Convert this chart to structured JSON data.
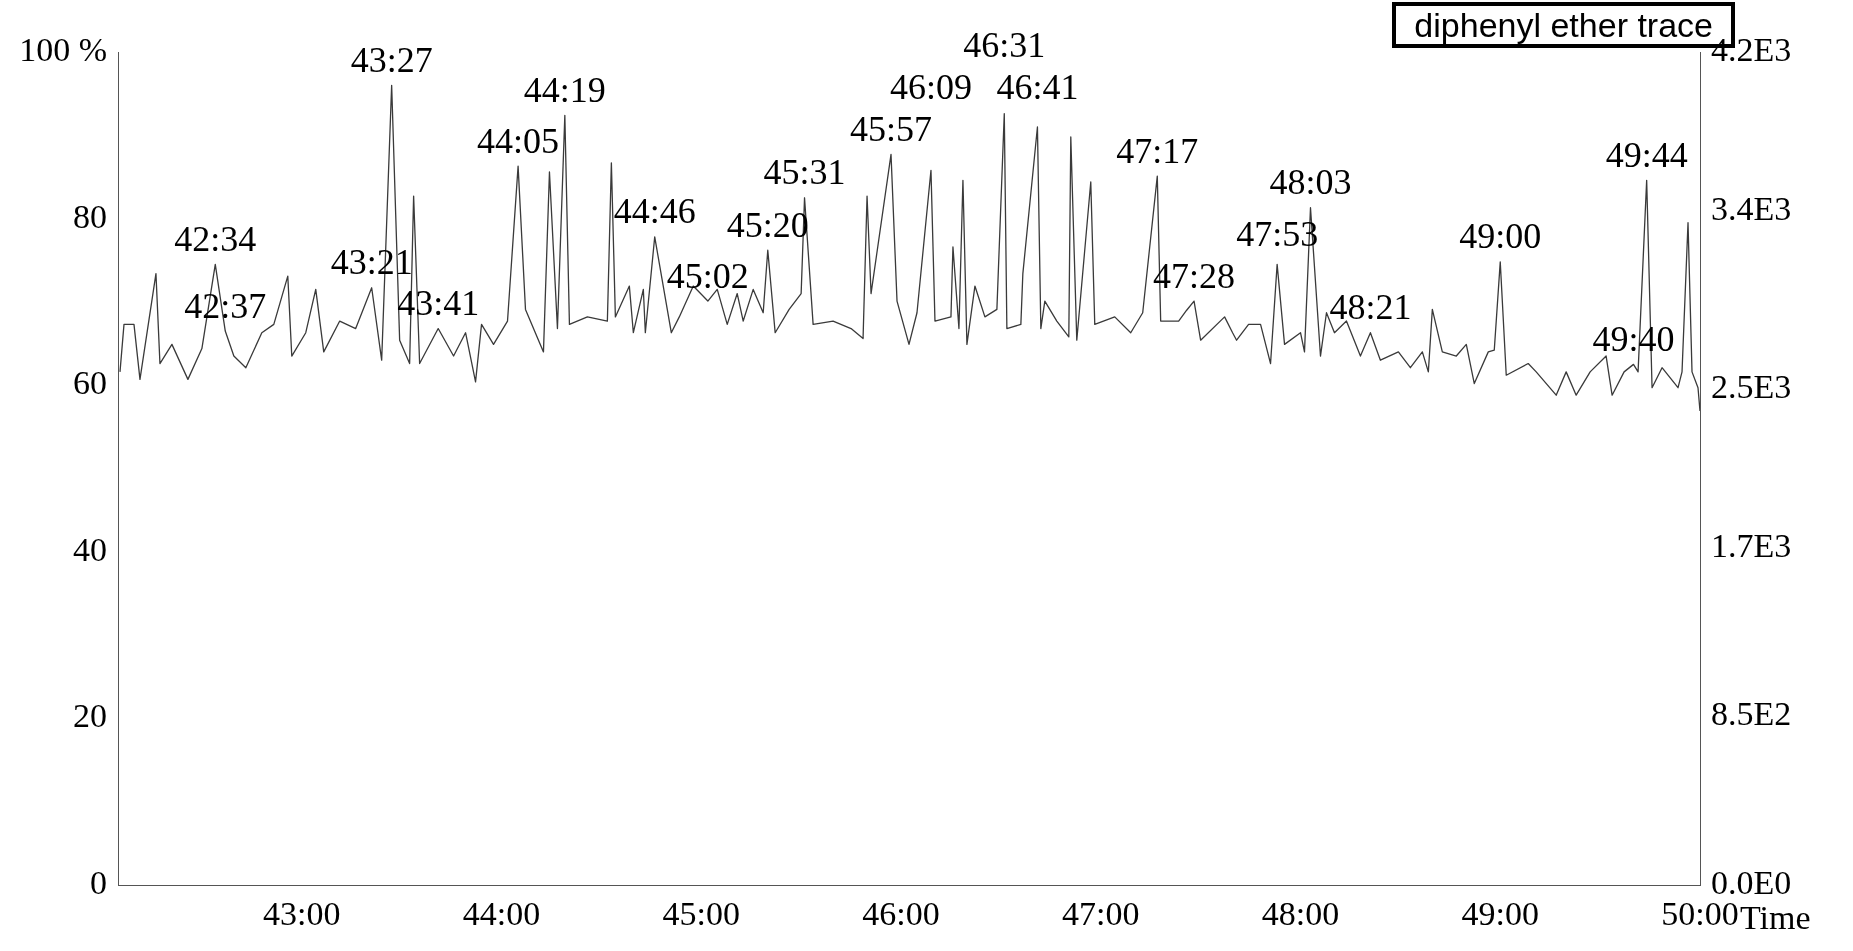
{
  "chart_data": {
    "type": "line",
    "title": "diphenyl ether trace",
    "xlabel": "Time",
    "xlim": [
      42.08,
      50.0
    ],
    "xticks": [
      {
        "value": 43,
        "label": "43:00"
      },
      {
        "value": 44,
        "label": "44:00"
      },
      {
        "value": 45,
        "label": "45:00"
      },
      {
        "value": 46,
        "label": "46:00"
      },
      {
        "value": 47,
        "label": "47:00"
      },
      {
        "value": 48,
        "label": "48:00"
      },
      {
        "value": 49,
        "label": "49:00"
      },
      {
        "value": 50,
        "label": "50:00"
      }
    ],
    "ylim": [
      0,
      100
    ],
    "yticks": [
      0,
      20,
      40,
      60,
      80,
      {
        "value": 100,
        "label": "100 %"
      }
    ],
    "y2lim": [
      0,
      4200
    ],
    "y2ticks": [
      {
        "value": 0,
        "label": "0.0E0"
      },
      {
        "value": 850,
        "label": "8.5E2"
      },
      {
        "value": 1700,
        "label": "1.7E3"
      },
      {
        "value": 2500,
        "label": "2.5E3"
      },
      {
        "value": 3400,
        "label": "3.4E3"
      },
      {
        "value": 4200,
        "label": "4.2E3"
      }
    ],
    "grid": false,
    "legend": false,
    "marker": "none",
    "line_style": "solid",
    "series": [
      {
        "color": "#3a3a3a",
        "x": [
          42.09,
          42.11,
          42.16,
          42.19,
          42.27,
          42.29,
          42.35,
          42.43,
          42.5,
          42.567,
          42.617,
          42.66,
          42.72,
          42.8,
          42.86,
          42.93,
          42.95,
          43.02,
          43.07,
          43.11,
          43.19,
          43.27,
          43.35,
          43.4,
          43.45,
          43.49,
          43.54,
          43.56,
          43.59,
          43.683,
          43.76,
          43.82,
          43.87,
          43.9,
          43.96,
          44.03,
          44.083,
          44.12,
          44.21,
          44.24,
          44.28,
          44.317,
          44.34,
          44.43,
          44.53,
          44.55,
          44.57,
          44.64,
          44.66,
          44.71,
          44.72,
          44.767,
          44.85,
          44.89,
          44.96,
          45.033,
          45.08,
          45.13,
          45.18,
          45.21,
          45.26,
          45.31,
          45.333,
          45.37,
          45.44,
          45.5,
          45.517,
          45.56,
          45.66,
          45.75,
          45.81,
          45.83,
          45.85,
          45.95,
          45.98,
          46.04,
          46.08,
          46.15,
          46.17,
          46.25,
          46.26,
          46.29,
          46.31,
          46.33,
          46.37,
          46.42,
          46.48,
          46.517,
          46.53,
          46.6,
          46.61,
          46.683,
          46.7,
          46.72,
          46.78,
          46.84,
          46.85,
          46.88,
          46.95,
          46.97,
          47.07,
          47.15,
          47.21,
          47.283,
          47.3,
          47.39,
          47.43,
          47.467,
          47.5,
          47.62,
          47.66,
          47.68,
          47.74,
          47.8,
          47.85,
          47.883,
          47.92,
          48.0,
          48.02,
          48.05,
          48.1,
          48.13,
          48.17,
          48.23,
          48.3,
          48.35,
          48.4,
          48.49,
          48.55,
          48.61,
          48.64,
          48.66,
          48.71,
          48.78,
          48.83,
          48.87,
          48.94,
          48.97,
          49.0,
          49.03,
          49.14,
          49.18,
          49.28,
          49.33,
          49.38,
          49.45,
          49.53,
          49.56,
          49.62,
          49.667,
          49.69,
          49.733,
          49.76,
          49.81,
          49.89,
          49.91,
          49.94,
          49.96,
          49.99,
          50.0
        ],
        "values": [
          61.6,
          67.3,
          67.3,
          60.7,
          73.4,
          62.6,
          64.9,
          60.7,
          64.4,
          74.5,
          66.5,
          63.5,
          62.1,
          66.3,
          67.3,
          73.1,
          63.5,
          66.3,
          71.5,
          64.0,
          67.7,
          66.8,
          71.7,
          63.0,
          96.0,
          65.4,
          62.6,
          82.7,
          62.6,
          66.8,
          63.5,
          66.3,
          60.4,
          67.3,
          64.9,
          67.7,
          86.3,
          69.1,
          64.0,
          85.6,
          66.8,
          92.4,
          67.3,
          68.2,
          67.7,
          86.7,
          68.2,
          71.9,
          66.3,
          71.5,
          66.3,
          77.8,
          66.3,
          68.2,
          71.9,
          70.1,
          71.5,
          67.3,
          71.0,
          67.7,
          71.5,
          68.7,
          76.2,
          66.3,
          69.1,
          71.0,
          82.5,
          67.3,
          67.7,
          66.8,
          65.6,
          82.7,
          71.0,
          87.7,
          70.1,
          64.9,
          68.7,
          85.8,
          67.7,
          68.2,
          76.6,
          66.8,
          84.6,
          64.9,
          71.9,
          68.2,
          69.1,
          92.6,
          66.8,
          67.3,
          73.4,
          91.0,
          66.8,
          70.1,
          67.7,
          65.8,
          89.8,
          65.4,
          84.4,
          67.3,
          68.2,
          66.3,
          68.7,
          85.1,
          67.7,
          67.7,
          69.0,
          70.1,
          65.4,
          68.2,
          66.3,
          65.4,
          67.3,
          67.3,
          62.6,
          74.5,
          64.9,
          66.3,
          64.0,
          81.3,
          63.5,
          68.7,
          66.3,
          67.7,
          63.5,
          66.3,
          63.0,
          64.0,
          62.1,
          64.0,
          61.6,
          69.1,
          64.0,
          63.5,
          64.9,
          60.2,
          64.0,
          64.2,
          74.8,
          61.2,
          62.6,
          61.6,
          58.8,
          61.6,
          58.8,
          61.6,
          63.5,
          58.8,
          61.6,
          62.5,
          61.6,
          84.6,
          59.7,
          62.1,
          59.7,
          61.6,
          79.5,
          61.6,
          59.7,
          56.9
        ]
      }
    ],
    "annotations": [
      {
        "text": "42:34",
        "x": 42.567,
        "y": 74.5
      },
      {
        "text": "42:37",
        "x": 42.617,
        "y": 66.5
      },
      {
        "text": "43:21",
        "x": 43.35,
        "y": 71.7
      },
      {
        "text": "43:27",
        "x": 43.45,
        "y": 96.0
      },
      {
        "text": "43:41",
        "x": 43.683,
        "y": 66.8
      },
      {
        "text": "44:05",
        "x": 44.083,
        "y": 86.3
      },
      {
        "text": "44:19",
        "x": 44.317,
        "y": 92.4
      },
      {
        "text": "44:46",
        "x": 44.767,
        "y": 77.8
      },
      {
        "text": "45:02",
        "x": 45.033,
        "y": 70.1
      },
      {
        "text": "45:20",
        "x": 45.333,
        "y": 76.2
      },
      {
        "text": "45:31",
        "x": 45.517,
        "y": 82.5
      },
      {
        "text": "45:57",
        "x": 45.95,
        "y": 87.7
      },
      {
        "text": "46:09",
        "x": 46.15,
        "y": 85.8
      },
      {
        "text": "46:31",
        "x": 46.517,
        "y": 92.6
      },
      {
        "text": "46:41",
        "x": 46.683,
        "y": 91.0
      },
      {
        "text": "47:17",
        "x": 47.283,
        "y": 85.1
      },
      {
        "text": "47:28",
        "x": 47.467,
        "y": 70.1
      },
      {
        "text": "47:53",
        "x": 47.883,
        "y": 74.5
      },
      {
        "text": "48:03",
        "x": 48.05,
        "y": 81.3
      },
      {
        "text": "48:21",
        "x": 48.35,
        "y": 66.3
      },
      {
        "text": "49:00",
        "x": 49.0,
        "y": 74.8
      },
      {
        "text": "49:40",
        "x": 49.667,
        "y": 62.5
      },
      {
        "text": "49:44",
        "x": 49.733,
        "y": 84.6
      }
    ]
  }
}
